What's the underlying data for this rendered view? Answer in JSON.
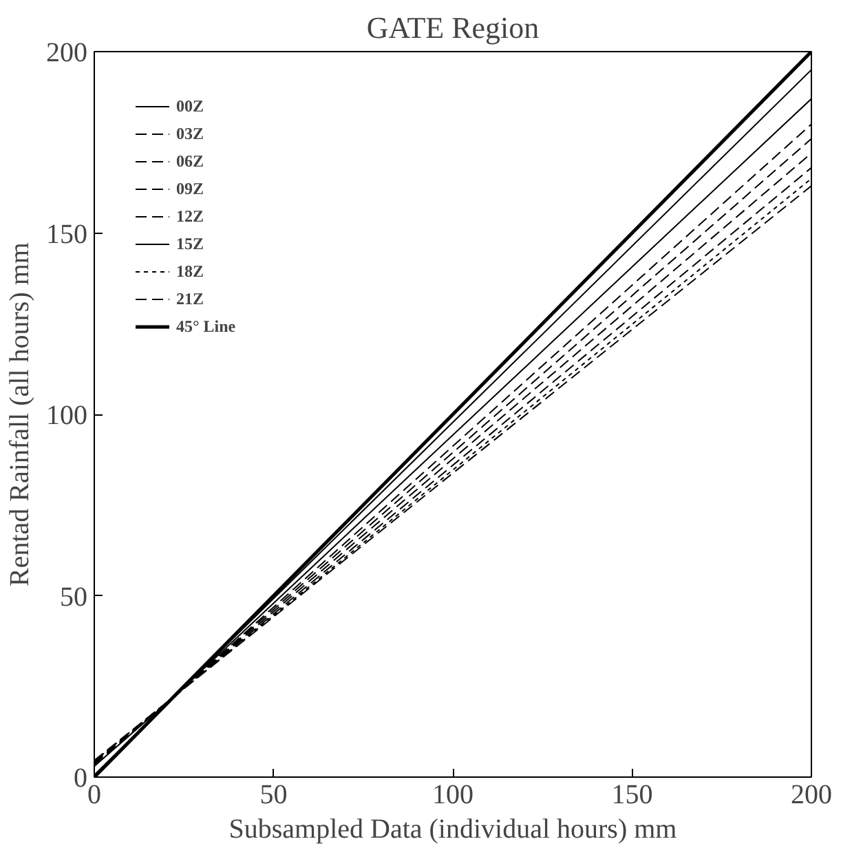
{
  "chart_data": {
    "type": "line",
    "title": "GATE Region",
    "xlabel": "Subsampled Data (individual hours) mm",
    "ylabel": "Rentad Rainfall (all hours) mm",
    "x": [
      0,
      22,
      200
    ],
    "series": [
      {
        "name": "00Z",
        "color": "#000000",
        "line_style": "solid",
        "values": [
          3.0,
          22,
          187
        ]
      },
      {
        "name": "03Z",
        "color": "#000000",
        "line_style": "dashed",
        "values": [
          4.0,
          22,
          176
        ]
      },
      {
        "name": "06Z",
        "color": "#000000",
        "line_style": "dashed",
        "values": [
          4.6,
          22,
          163
        ]
      },
      {
        "name": "09Z",
        "color": "#000000",
        "line_style": "dashed",
        "values": [
          3.5,
          22,
          180
        ]
      },
      {
        "name": "12Z",
        "color": "#000000",
        "line_style": "dashed",
        "values": [
          4.3,
          22,
          168
        ]
      },
      {
        "name": "15Z",
        "color": "#000000",
        "line_style": "solid",
        "values": [
          0.6,
          22,
          195
        ]
      },
      {
        "name": "18Z",
        "color": "#000000",
        "line_style": "dotted",
        "values": [
          4.4,
          22,
          165
        ]
      },
      {
        "name": "21Z",
        "color": "#000000",
        "line_style": "dashed",
        "values": [
          3.8,
          22,
          172
        ]
      },
      {
        "name": "45° Line",
        "color": "#000000",
        "line_style": "solid",
        "values": [
          0,
          22,
          200
        ]
      }
    ],
    "xlim": [
      0,
      200
    ],
    "ylim": [
      0,
      200
    ],
    "xticks": [
      0,
      50,
      100,
      150,
      200
    ],
    "yticks": [
      0,
      50,
      100,
      150,
      200
    ],
    "grid": false,
    "legend": "top left"
  }
}
